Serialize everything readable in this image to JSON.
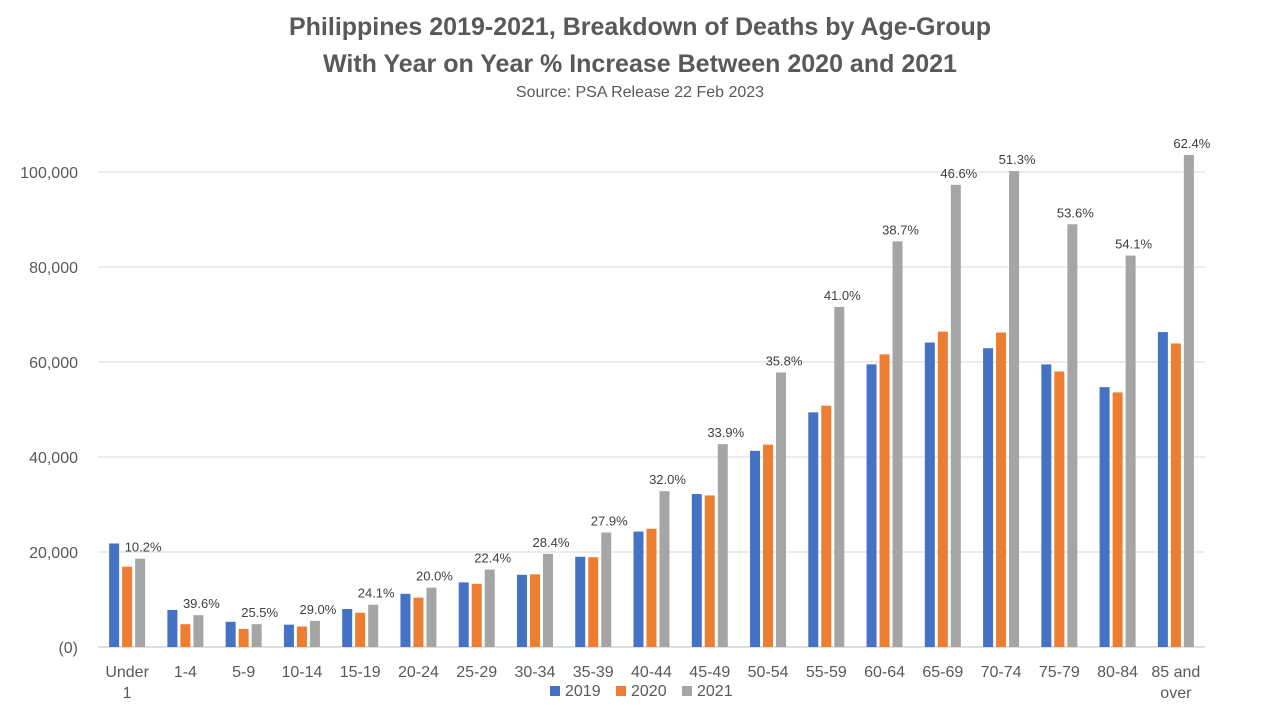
{
  "chart_data": {
    "type": "bar",
    "title": "Philippines 2019-2021, Breakdown of Deaths by Age-Group",
    "subtitle": "With Year on Year % Increase Between 2020 and 2021",
    "source": "Source: PSA Release 22 Feb 2023",
    "categories": [
      "Under 1",
      "1-4",
      "5-9",
      "10-14",
      "15-19",
      "20-24",
      "25-29",
      "30-34",
      "35-39",
      "40-44",
      "45-49",
      "50-54",
      "55-59",
      "60-64",
      "65-69",
      "70-74",
      "75-79",
      "80-84",
      "85 and over"
    ],
    "category_lines": [
      [
        "Under",
        "1"
      ],
      [
        "1-4"
      ],
      [
        "5-9"
      ],
      [
        "10-14"
      ],
      [
        "15-19"
      ],
      [
        "20-24"
      ],
      [
        "25-29"
      ],
      [
        "30-34"
      ],
      [
        "35-39"
      ],
      [
        "40-44"
      ],
      [
        "45-49"
      ],
      [
        "50-54"
      ],
      [
        "55-59"
      ],
      [
        "60-64"
      ],
      [
        "65-69"
      ],
      [
        "70-74"
      ],
      [
        "75-79"
      ],
      [
        "80-84"
      ],
      [
        "85 and",
        "over"
      ]
    ],
    "series": [
      {
        "name": "2019",
        "color": "#4472C4",
        "values": [
          21800,
          7800,
          5300,
          4700,
          8000,
          11200,
          13600,
          15200,
          19000,
          24300,
          32200,
          41300,
          49400,
          59500,
          64100,
          62900,
          59500,
          54700,
          66300
        ]
      },
      {
        "name": "2020",
        "color": "#ED7D31",
        "values": [
          16900,
          4800,
          3800,
          4300,
          7200,
          10400,
          13300,
          15300,
          18900,
          24900,
          31900,
          42600,
          50800,
          61600,
          66400,
          66200,
          58000,
          53600,
          63900
        ]
      },
      {
        "name": "2021",
        "color": "#A5A5A5",
        "values": [
          18600,
          6700,
          4800,
          5500,
          8900,
          12500,
          16300,
          19600,
          24100,
          32800,
          42700,
          57800,
          71600,
          85400,
          97300,
          100200,
          89000,
          82400,
          103600
        ]
      }
    ],
    "data_labels": [
      "10.2%",
      "39.6%",
      "25.5%",
      "29.0%",
      "24.1%",
      "20.0%",
      "22.4%",
      "28.4%",
      "27.9%",
      "32.0%",
      "33.9%",
      "35.8%",
      "41.0%",
      "38.7%",
      "46.6%",
      "51.3%",
      "53.6%",
      "54.1%",
      "62.4%"
    ],
    "yticks": [
      0,
      20000,
      40000,
      60000,
      80000,
      100000
    ],
    "ytick_labels": [
      "(0)",
      "20,000",
      "40,000",
      "60,000",
      "80,000",
      "100,000"
    ],
    "ylim": [
      0,
      100000
    ],
    "xlabel": "",
    "ylabel": "",
    "grid": true,
    "legend_position": "bottom"
  }
}
